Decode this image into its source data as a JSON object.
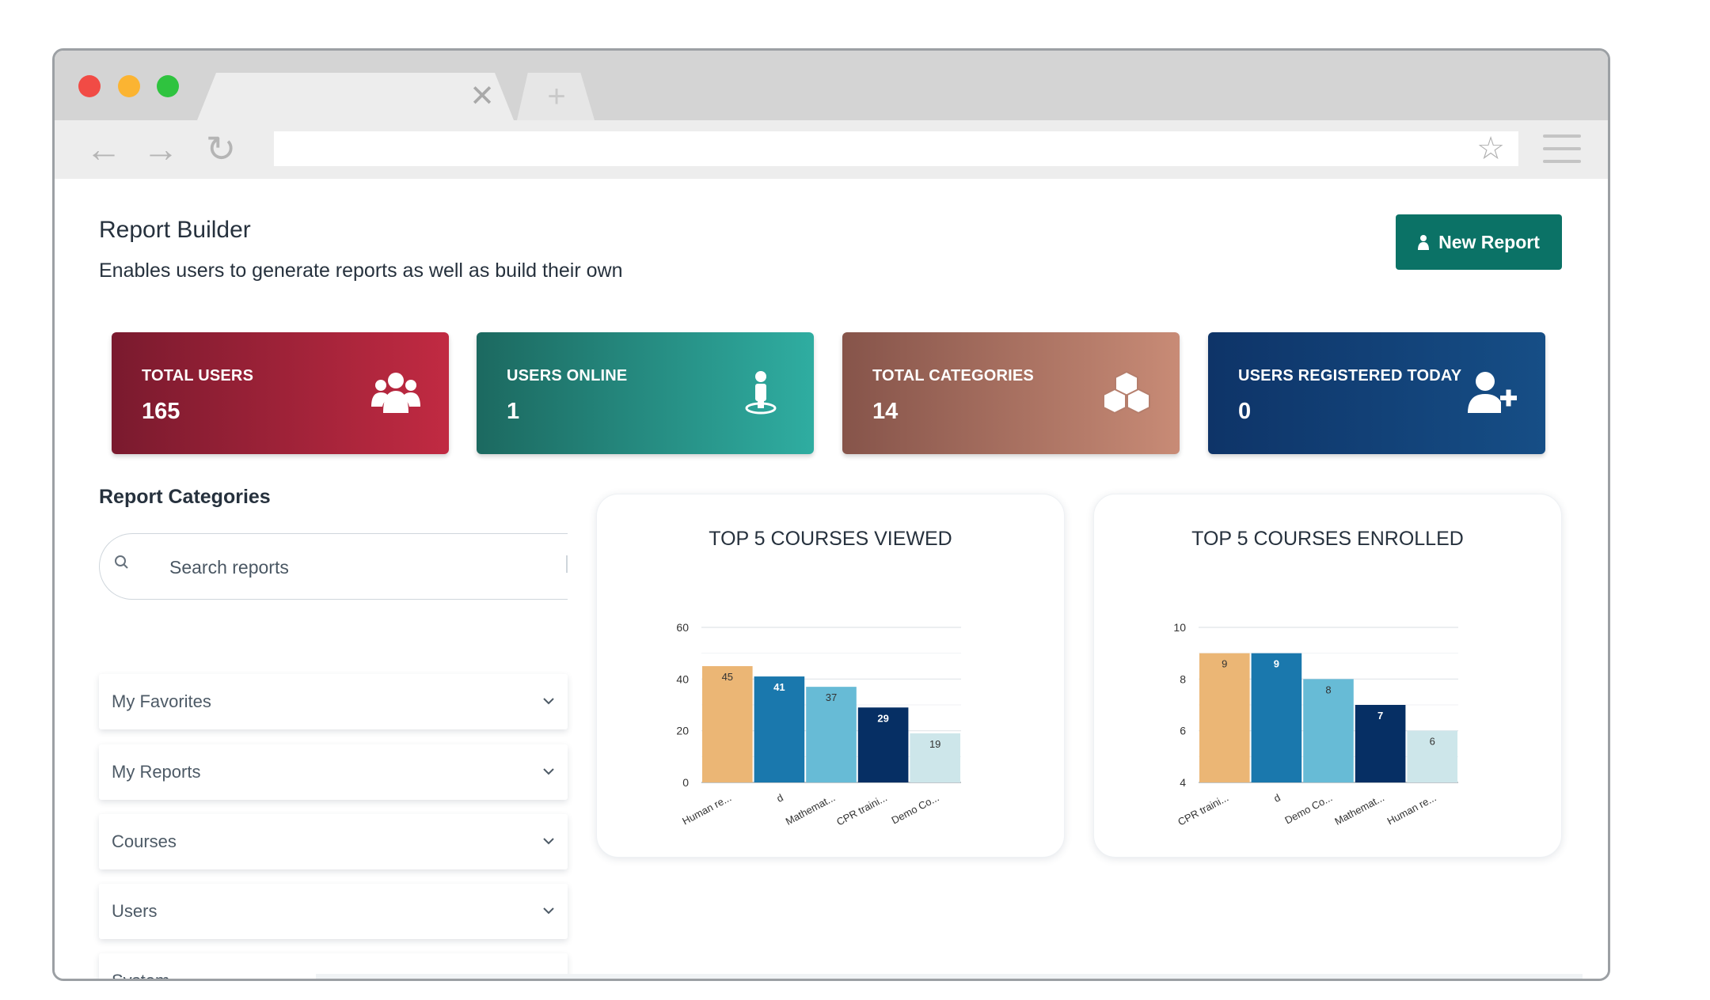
{
  "page": {
    "title": "Report Builder",
    "subtitle": "Enables users to generate reports as well as build their own",
    "new_report_label": "New Report"
  },
  "stats": [
    {
      "label": "TOTAL USERS",
      "value": "165",
      "icon": "users-icon"
    },
    {
      "label": "USERS ONLINE",
      "value": "1",
      "icon": "user-online-icon"
    },
    {
      "label": "TOTAL CATEGORIES",
      "value": "14",
      "icon": "cubes-icon"
    },
    {
      "label": "USERS REGISTERED TODAY",
      "value": "0",
      "icon": "user-plus-icon"
    }
  ],
  "sidebar": {
    "title": "Report Categories",
    "search_placeholder": "Search reports",
    "items": [
      {
        "label": "My Favorites"
      },
      {
        "label": "My Reports"
      },
      {
        "label": "Courses"
      },
      {
        "label": "Users"
      },
      {
        "label": "System"
      }
    ]
  },
  "colors": {
    "primary": "#0b7266",
    "bar_palette": [
      "#ebb675",
      "#1a78ad",
      "#67bbd6",
      "#062f64",
      "#cde6ea"
    ]
  },
  "chart_data": [
    {
      "type": "bar",
      "title": "TOP 5 COURSES VIEWED",
      "categories": [
        "Human re...",
        "d",
        "Mathemat...",
        "CPR traini...",
        "Demo Co..."
      ],
      "values": [
        45,
        41,
        37,
        29,
        19
      ],
      "ylim": [
        0,
        60
      ],
      "yticks": [
        "0",
        "20",
        "40",
        "60"
      ],
      "grid": true
    },
    {
      "type": "bar",
      "title": "TOP 5 COURSES ENROLLED",
      "categories": [
        "CPR traini...",
        "d",
        "Demo Co...",
        "Mathemat...",
        "Human re..."
      ],
      "values": [
        9,
        9,
        8,
        7,
        6
      ],
      "ylim": [
        4,
        10
      ],
      "yticks": [
        "4",
        "6",
        "8",
        "10"
      ],
      "grid": true
    }
  ]
}
